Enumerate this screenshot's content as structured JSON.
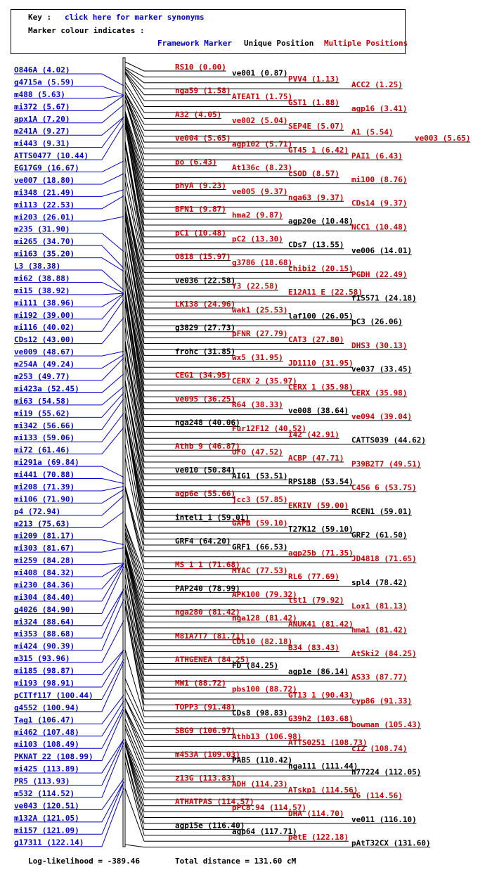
{
  "key": {
    "label": "Key :",
    "synonyms_link": "click here for marker synonyms",
    "colour_label": "Marker colour indicates :",
    "framework": "Framework Marker",
    "unique": "Unique Position",
    "multiple": "Multiple Positions"
  },
  "colors": {
    "framework": "#0000cc",
    "unique": "#000000",
    "multiple": "#cc0000"
  },
  "left_markers": [
    "O846A (4.02)",
    "g4715a (5.59)",
    "m488 (5.63)",
    "mi372 (5.67)",
    "apx1A (7.20)",
    "m241A (9.27)",
    "mi443 (9.31)",
    "ATTS0477 (10.44)",
    "EG17G9 (16.67)",
    "ve007 (18.80)",
    "mi348 (21.49)",
    "mi113 (22.53)",
    "mi203 (26.01)",
    "m235 (31.90)",
    "mi265 (34.70)",
    "mi163 (35.20)",
    "L3 (38.38)",
    "mi62 (38.88)",
    "mi15 (38.92)",
    "mi111 (38.96)",
    "mi192 (39.00)",
    "mi116 (40.02)",
    "CDs12 (43.00)",
    "ve009 (48.67)",
    "m254A (49.24)",
    "m253 (49.77)",
    "mi423a (52.45)",
    "mi63 (54.58)",
    "mi19 (55.62)",
    "mi342 (56.66)",
    "mi133 (59.06)",
    "mi72 (61.46)",
    "mi291a (69.84)",
    "mi441 (70.88)",
    "mi208 (71.39)",
    "mi106 (71.90)",
    "p4 (72.94)",
    "m213 (75.63)",
    "mi209 (81.17)",
    "mi303 (81.67)",
    "mi259 (84.28)",
    "mi408 (84.32)",
    "mi230 (84.36)",
    "mi304 (84.40)",
    "g4026 (84.90)",
    "mi324 (88.64)",
    "mi353 (88.68)",
    "mi424 (90.39)",
    "m315 (93.96)",
    "mi185 (98.87)",
    "mi193 (98.91)",
    "pCITf117 (100.44)",
    "g4552 (100.94)",
    "Tag1 (106.47)",
    "mi462 (107.48)",
    "mi103 (108.49)",
    "PKNAT_22 (108.99)",
    "mi425 (113.89)",
    "PR5 (113.93)",
    "m532 (114.52)",
    "ve043 (120.51)",
    "m132A (121.05)",
    "mi157 (121.09)",
    "g17311 (122.14)"
  ],
  "right_rows": [
    [
      "RS10 (0.00)",
      "m",
      "ve001 (0.87)",
      "u",
      "PVV4 (1.13)",
      "m",
      "ACC2 (1.25)",
      "m"
    ],
    [
      "nga59 (1.58)",
      "m",
      "ATEAT1 (1.75)",
      "m",
      "GST1 (1.88)",
      "m",
      "agp16 (3.41)",
      "m"
    ],
    [
      "A32 (4.05)",
      "m",
      "ve002 (5.04)",
      "m",
      "SEP4E (5.07)",
      "m",
      "A1 (5.54)",
      "m",
      "ve003 (5.65)",
      "m"
    ],
    [
      "ve004 (5.65)",
      "m",
      "agp102 (5.71)",
      "m",
      "GT45_1 (6.42)",
      "m",
      "PAI1 (6.43)",
      "m"
    ],
    [
      "po (6.43)",
      "m",
      "At136c (8.23)",
      "m",
      "cSOD (8.57)",
      "m",
      "mi100 (8.76)",
      "m"
    ],
    [
      "phyA (9.23)",
      "m",
      "ve005 (9.37)",
      "m",
      "nga63 (9.37)",
      "m",
      "CDs14 (9.37)",
      "m"
    ],
    [
      "BFN1 (9.87)",
      "m",
      "hma2 (9.87)",
      "m",
      "agp20e (10.48)",
      "u",
      "NCC1 (10.48)",
      "m"
    ],
    [
      "pC1 (10.48)",
      "m",
      "pC2 (13.30)",
      "m",
      "CDs7 (13.55)",
      "u",
      "ve006 (14.01)",
      "u"
    ],
    [
      "O818 (15.97)",
      "m",
      "g3786 (18.68)",
      "m",
      "chibi2 (20.15)",
      "m",
      "PGDH (22.49)",
      "m"
    ],
    [
      "ve036 (22.58)",
      "u",
      "Y3 (22.58)",
      "m",
      "E12A11_E (22.58)",
      "m",
      "f15571 (24.18)",
      "u"
    ],
    [
      "LK138 (24.96)",
      "m",
      "wak1 (25.53)",
      "m",
      "laf100 (26.05)",
      "u",
      "pC3 (26.06)",
      "u"
    ],
    [
      "g3829 (27.73)",
      "u",
      "pFNR (27.79)",
      "m",
      "CAT3 (27.80)",
      "m",
      "DHS3 (30.13)",
      "m"
    ],
    [
      "frohc (31.85)",
      "u",
      "wx5 (31.95)",
      "m",
      "JD1110 (31.95)",
      "m",
      "ve037 (33.45)",
      "u"
    ],
    [
      "CEG1 (34.95)",
      "m",
      "CERX_2 (35.97)",
      "m",
      "CERX_1 (35.98)",
      "m",
      "CERX (35.98)",
      "m"
    ],
    [
      "ve095 (36.25)",
      "m",
      "R64 (38.33)",
      "m",
      "ve008 (38.64)",
      "u",
      "ve094 (39.04)",
      "m"
    ],
    [
      "nga248 (40.06)",
      "u",
      "Fur12F12 (40.52)",
      "m",
      "I42 (42.91)",
      "m",
      "CATTS039 (44.62)",
      "u"
    ],
    [
      "Athb_9 (46.87)",
      "m",
      "UFO (47.52)",
      "m",
      "ACBP (47.71)",
      "m",
      "P39B2T7 (49.51)",
      "m"
    ],
    [
      "ve010 (50.84)",
      "u",
      "AIG1 (53.51)",
      "u",
      "RPS18B (53.54)",
      "u",
      "C456_6 (53.75)",
      "m"
    ],
    [
      "agp6e (55.66)",
      "m",
      "jcc3 (57.85)",
      "m",
      "EKRIV (59.00)",
      "m",
      "RCEN1 (59.01)",
      "u"
    ],
    [
      "intel1_1 (59.01)",
      "u",
      "GAPB (59.10)",
      "m",
      "T27K12 (59.10)",
      "u",
      "GRF2 (61.50)",
      "u"
    ],
    [
      "GRF4 (64.20)",
      "u",
      "GRF1 (66.53)",
      "u",
      "agp25b (71.35)",
      "m",
      "JD4818 (71.65)",
      "m"
    ],
    [
      "MS_1_1 (71.68)",
      "m",
      "MYAC (77.53)",
      "m",
      "RL6 (77.69)",
      "m",
      "spl4 (78.42)",
      "u"
    ],
    [
      "PAP240 (78.99)",
      "u",
      "APK100 (79.32)",
      "m",
      "tst1 (79.92)",
      "m",
      "Lox1 (81.13)",
      "m"
    ],
    [
      "nga280 (81.42)",
      "m",
      "nga128 (81.42)",
      "m",
      "ANUK41 (81.42)",
      "m",
      "hma1 (81.42)",
      "m"
    ],
    [
      "M81A7T7 (81.71)",
      "m",
      "CDs10 (82.18)",
      "m",
      "B34 (83.43)",
      "m",
      "AtSki2 (84.25)",
      "m"
    ],
    [
      "ATHGENEA (84.25)",
      "m",
      "FD (84.25)",
      "u",
      "agp1e (86.14)",
      "u",
      "AS33 (87.77)",
      "m"
    ],
    [
      "MW1 (88.72)",
      "m",
      "pbs100 (88.72)",
      "m",
      "GT13_1 (90.43)",
      "m",
      "cyp86 (91.33)",
      "m"
    ],
    [
      "TOPP3 (91.48)",
      "m",
      "CDs8 (98.83)",
      "u",
      "G39h2 (103.68)",
      "m",
      "bowman (105.43)",
      "m"
    ],
    [
      "SBG9 (106.97)",
      "m",
      "Athb13 (106.98)",
      "m",
      "ATTS0251 (108.73)",
      "m",
      "c12 (108.74)",
      "m"
    ],
    [
      "m453A (109.03)",
      "m",
      "PAB5 (110.42)",
      "u",
      "nga111 (111.44)",
      "u",
      "h77224 (112.05)",
      "u"
    ],
    [
      "z13G (113.83)",
      "m",
      "ADH (114.23)",
      "m",
      "ATskp1 (114.56)",
      "m",
      "I6 (114.56)",
      "m"
    ],
    [
      "ATHATPAS (114.57)",
      "m",
      "pPC8.94 (114.57)",
      "m",
      "DHA (114.70)",
      "m",
      "ve011 (116.10)",
      "u"
    ],
    [
      "agp15e (116.40)",
      "u",
      "agp64 (117.71)",
      "u",
      "petE (122.18)",
      "m",
      "pAtT32CX (131.60)",
      "u"
    ]
  ],
  "footer": {
    "loglik": "Log-likelihood = -389.46",
    "total": "Total distance = 131.60 cM"
  }
}
